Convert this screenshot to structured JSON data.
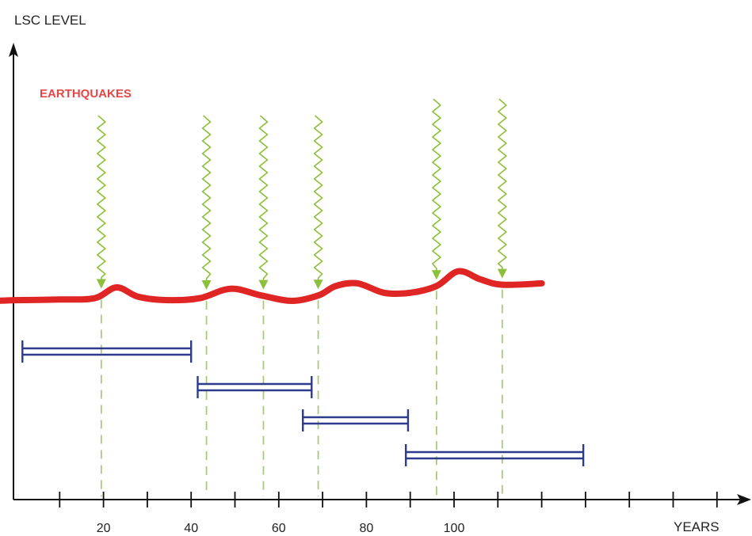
{
  "diagram": {
    "y_axis_label": "LSC LEVEL",
    "x_axis_label": "YEARS",
    "series_label": "EARTHQUAKES",
    "x_tick_labels": [
      {
        "value": 20,
        "label": "20"
      },
      {
        "value": 40,
        "label": "40"
      },
      {
        "value": 60,
        "label": "60"
      },
      {
        "value": 80,
        "label": "80"
      },
      {
        "value": 100,
        "label": "100"
      }
    ],
    "x_tick_marks": [
      10,
      20,
      30,
      40,
      50,
      60,
      70,
      80,
      90,
      100,
      110,
      120,
      130,
      140,
      150,
      160
    ],
    "earthquake_years": [
      19.5,
      43.5,
      56.5,
      69,
      96,
      111
    ],
    "lsc_level_curve": [
      [
        -4.5,
        0.0
      ],
      [
        0,
        0.05
      ],
      [
        10,
        0.1
      ],
      [
        18,
        0.2
      ],
      [
        23,
        1.0
      ],
      [
        28,
        0.3
      ],
      [
        35,
        0.05
      ],
      [
        42,
        0.2
      ],
      [
        49,
        0.9
      ],
      [
        56,
        0.4
      ],
      [
        63,
        0.0
      ],
      [
        69,
        0.4
      ],
      [
        73,
        1.1
      ],
      [
        78,
        1.3
      ],
      [
        84,
        0.6
      ],
      [
        90,
        0.6
      ],
      [
        96,
        1.1
      ],
      [
        101,
        2.2
      ],
      [
        106,
        1.6
      ],
      [
        111,
        1.2
      ],
      [
        120,
        1.3
      ]
    ],
    "intervals": [
      {
        "start": 1.5,
        "end": 40
      },
      {
        "start": 41.5,
        "end": 67.5
      },
      {
        "start": 65.5,
        "end": 89.5
      },
      {
        "start": 89,
        "end": 129.5
      }
    ],
    "colors": {
      "axis": "#111111",
      "curve": "#e02525",
      "earthquake_label": "#e34848",
      "arrow": "#8cbf3a",
      "dashed": "#a9c97f",
      "interval": "#2e3a8c"
    }
  }
}
